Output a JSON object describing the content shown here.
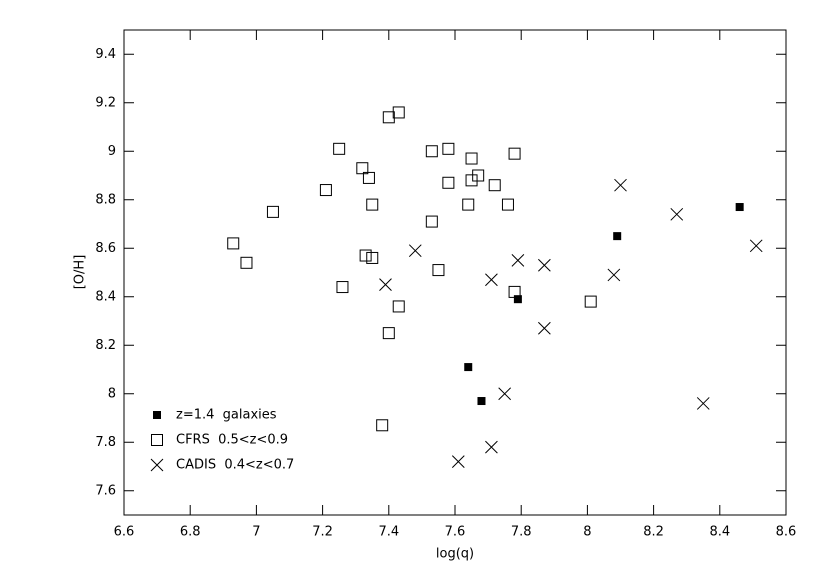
{
  "chart_data": {
    "type": "scatter",
    "x_label": "log(q)",
    "y_label": "[O/H]",
    "xlim": [
      6.6,
      8.6
    ],
    "ylim": [
      7.5,
      9.5
    ],
    "xticks": [
      6.6,
      6.8,
      7,
      7.2,
      7.4,
      7.6,
      7.8,
      8,
      8.2,
      8.4,
      8.6
    ],
    "yticks": [
      7.6,
      7.8,
      8,
      8.2,
      8.4,
      8.6,
      8.8,
      9,
      9.2,
      9.4
    ],
    "legend": "lower left",
    "series": [
      {
        "name": "z=1.4  galaxies",
        "marker": "filled-square",
        "color": "#000000",
        "x": [
          7.79,
          7.64,
          7.68,
          8.09,
          8.46
        ],
        "y": [
          8.39,
          8.11,
          7.97,
          8.65,
          8.77
        ]
      },
      {
        "name": "CFRS  0.5<z<0.9",
        "marker": "open-square",
        "color": "#000000",
        "x": [
          6.93,
          6.97,
          7.05,
          7.21,
          7.25,
          7.26,
          7.32,
          7.34,
          7.35,
          7.33,
          7.35,
          7.4,
          7.43,
          7.4,
          7.43,
          7.38,
          7.53,
          7.53,
          7.55,
          7.58,
          7.58,
          7.65,
          7.65,
          7.67,
          7.64,
          7.72,
          7.78,
          7.76,
          7.78,
          8.01
        ],
        "y": [
          8.62,
          8.54,
          8.75,
          8.84,
          9.01,
          8.44,
          8.93,
          8.89,
          8.78,
          8.57,
          8.56,
          9.14,
          9.16,
          8.25,
          8.36,
          7.87,
          9.0,
          8.71,
          8.51,
          9.01,
          8.87,
          8.97,
          8.88,
          8.9,
          8.78,
          8.86,
          8.99,
          8.78,
          8.42,
          8.38
        ]
      },
      {
        "name": "CADIS  0.4<z<0.7",
        "marker": "cross",
        "color": "#000000",
        "x": [
          7.48,
          7.39,
          7.71,
          7.79,
          7.87,
          7.87,
          7.75,
          7.61,
          7.71,
          8.1,
          8.27,
          8.08,
          8.35,
          8.51
        ],
        "y": [
          8.59,
          8.45,
          8.47,
          8.55,
          8.53,
          8.27,
          8.0,
          7.72,
          7.78,
          8.86,
          8.74,
          8.49,
          7.96,
          8.61
        ]
      }
    ]
  }
}
